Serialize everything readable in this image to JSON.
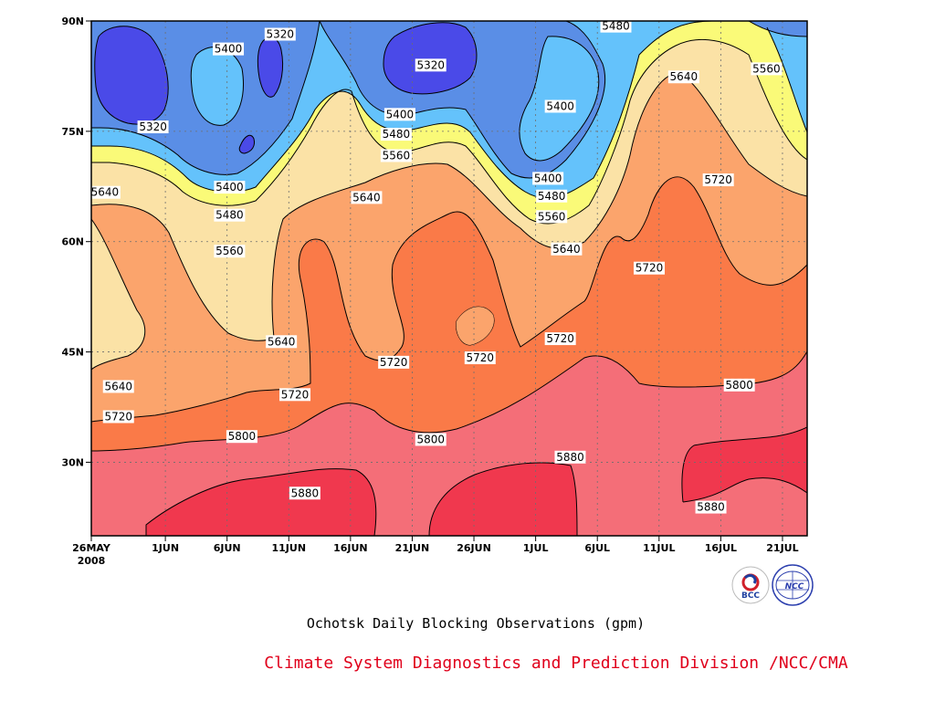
{
  "chart_data": {
    "type": "heatmap",
    "subtype": "filled-contour",
    "xlabel": "",
    "ylabel": "",
    "x_ticks": [
      {
        "label": "26MAY",
        "day": 0
      },
      {
        "label": "1JUN",
        "day": 6
      },
      {
        "label": "6JUN",
        "day": 11
      },
      {
        "label": "11JUN",
        "day": 16
      },
      {
        "label": "16JUN",
        "day": 21
      },
      {
        "label": "21JUN",
        "day": 26
      },
      {
        "label": "26JUN",
        "day": 31
      },
      {
        "label": "1JUL",
        "day": 36
      },
      {
        "label": "6JUL",
        "day": 41
      },
      {
        "label": "11JUL",
        "day": 46
      },
      {
        "label": "16JUL",
        "day": 51
      },
      {
        "label": "21JUL",
        "day": 56
      }
    ],
    "x_year_label": "2008",
    "xlim_days": [
      0,
      58
    ],
    "y_ticks": [
      {
        "label": "30N",
        "lat": 30
      },
      {
        "label": "45N",
        "lat": 45
      },
      {
        "label": "60N",
        "lat": 60
      },
      {
        "label": "75N",
        "lat": 75
      },
      {
        "label": "90N",
        "lat": 90
      }
    ],
    "ylim_lat": [
      20,
      90
    ],
    "grid": true,
    "contour_levels": [
      5320,
      5400,
      5480,
      5560,
      5640,
      5720,
      5800,
      5880
    ],
    "fill_colors": {
      "below_5320": "#4a4ae8",
      "5320_5400": "#5a8ee6",
      "5400_5480": "#64c2fb",
      "5480_5560": "#fafa78",
      "5560_5640": "#fbe2a6",
      "5640_5720": "#fba46c",
      "5720_5800": "#fa7a48",
      "5800_5880": "#f46e78",
      "above_5880": "#f0384e"
    },
    "contour_labels": [
      {
        "text": "5320",
        "day": 27.5,
        "lat": 84.0
      },
      {
        "text": "5400",
        "day": 11.1,
        "lat": 86.2
      },
      {
        "text": "5320",
        "day": 15.3,
        "lat": 88.2
      },
      {
        "text": "5320",
        "day": 5.0,
        "lat": 75.6
      },
      {
        "text": "5480",
        "day": 42.5,
        "lat": 89.3
      },
      {
        "text": "5560",
        "day": 54.7,
        "lat": 83.5
      },
      {
        "text": "5640",
        "day": 48.0,
        "lat": 82.4
      },
      {
        "text": "5400",
        "day": 25.0,
        "lat": 77.3
      },
      {
        "text": "5480",
        "day": 24.7,
        "lat": 74.6
      },
      {
        "text": "5560",
        "day": 24.7,
        "lat": 71.7
      },
      {
        "text": "5400",
        "day": 38.0,
        "lat": 78.4
      },
      {
        "text": "5400",
        "day": 37.0,
        "lat": 68.6
      },
      {
        "text": "5480",
        "day": 37.3,
        "lat": 66.2
      },
      {
        "text": "5560",
        "day": 37.3,
        "lat": 63.4
      },
      {
        "text": "5640",
        "day": 38.5,
        "lat": 59.0
      },
      {
        "text": "5400",
        "day": 11.2,
        "lat": 67.4
      },
      {
        "text": "5480",
        "day": 11.2,
        "lat": 63.6
      },
      {
        "text": "5560",
        "day": 11.2,
        "lat": 58.7
      },
      {
        "text": "5640",
        "day": 1.1,
        "lat": 66.7
      },
      {
        "text": "5640",
        "day": 22.3,
        "lat": 66.0
      },
      {
        "text": "5720",
        "day": 50.8,
        "lat": 68.4
      },
      {
        "text": "5720",
        "day": 45.2,
        "lat": 56.4
      },
      {
        "text": "5640",
        "day": 15.4,
        "lat": 46.4
      },
      {
        "text": "5720",
        "day": 24.5,
        "lat": 43.6
      },
      {
        "text": "5720",
        "day": 31.5,
        "lat": 44.2
      },
      {
        "text": "5720",
        "day": 38.0,
        "lat": 46.8
      },
      {
        "text": "5640",
        "day": 2.2,
        "lat": 40.3
      },
      {
        "text": "5720",
        "day": 2.2,
        "lat": 36.2
      },
      {
        "text": "5720",
        "day": 16.5,
        "lat": 39.2
      },
      {
        "text": "5800",
        "day": 12.2,
        "lat": 33.5
      },
      {
        "text": "5800",
        "day": 27.5,
        "lat": 33.1
      },
      {
        "text": "5800",
        "day": 52.5,
        "lat": 40.5
      },
      {
        "text": "5880",
        "day": 38.8,
        "lat": 30.7
      },
      {
        "text": "5880",
        "day": 17.3,
        "lat": 25.8
      },
      {
        "text": "5880",
        "day": 50.2,
        "lat": 23.9
      }
    ],
    "caption": "Ochotsk Daily Blocking Observations (gpm)"
  },
  "footer": {
    "credit": "Climate System Diagnostics and Prediction Division /NCC/CMA",
    "logo_bcc": "BCC",
    "logo_ncc": "NCC"
  }
}
